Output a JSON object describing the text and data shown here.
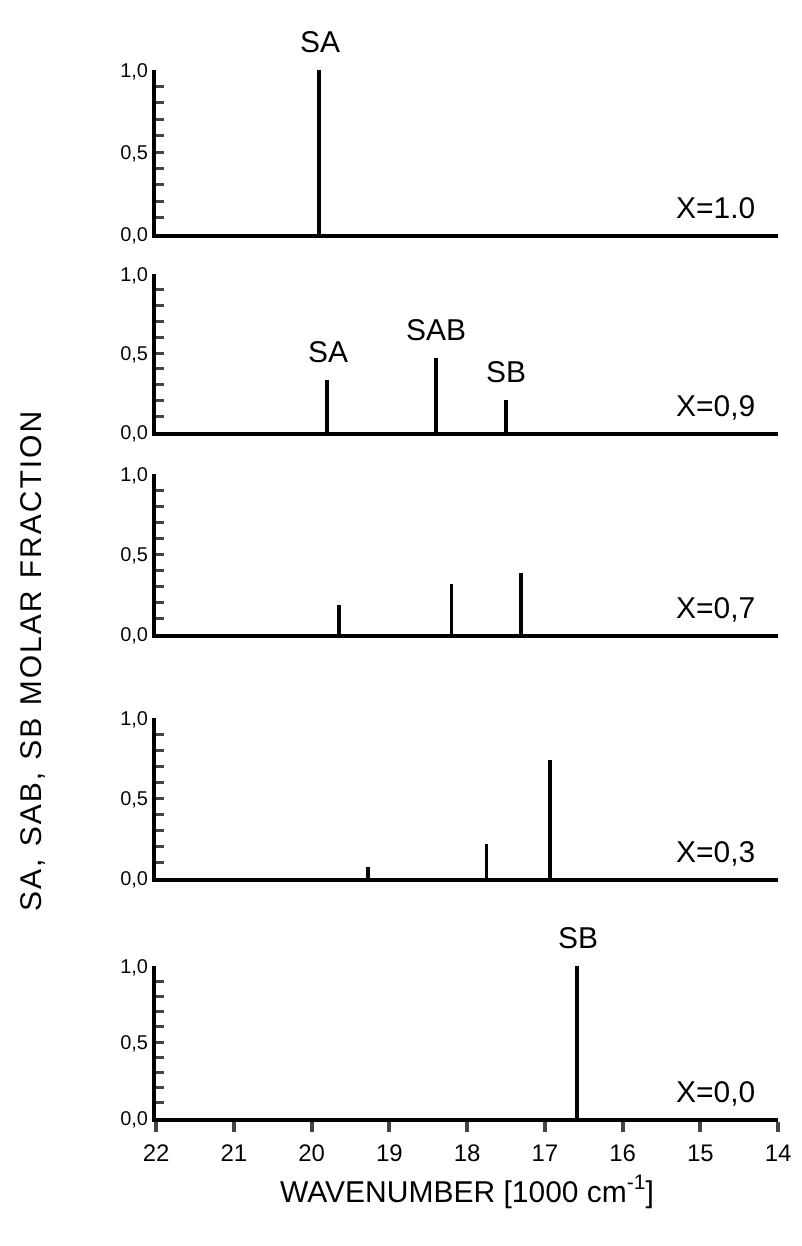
{
  "chart_data": [
    {
      "type": "bar",
      "x": [
        19.9
      ],
      "values": [
        1.0
      ],
      "color": "#000000",
      "xlim": [
        22,
        14
      ],
      "ylim": [
        0,
        1
      ],
      "tick_labels": "y",
      "yticks": [
        {
          "value": 0,
          "label": "0,0"
        },
        {
          "value": 0.1,
          "label": null
        },
        {
          "value": 0.2,
          "label": null
        },
        {
          "value": 0.3,
          "label": null
        },
        {
          "value": 0.4,
          "label": null
        },
        {
          "value": 0.5,
          "label": "0,5"
        },
        {
          "value": 0.6,
          "label": null
        },
        {
          "value": 0.7,
          "label": null
        },
        {
          "value": 0.8,
          "label": null
        },
        {
          "value": 0.9,
          "label": null
        },
        {
          "value": 1,
          "label": "1,0"
        }
      ],
      "annotations": [
        {
          "text": "SA",
          "x": 19.9,
          "y": 1.0
        },
        "X=1.0"
      ]
    },
    {
      "type": "bar",
      "x": [
        19.8,
        18.4,
        17.5
      ],
      "values": [
        0.33,
        0.47,
        0.2
      ],
      "color": "#000000",
      "xlim": [
        22,
        14
      ],
      "ylim": [
        0,
        1
      ],
      "tick_labels": "y",
      "yticks": [
        {
          "value": 0,
          "label": "0,0"
        },
        {
          "value": 0.1,
          "label": null
        },
        {
          "value": 0.2,
          "label": null
        },
        {
          "value": 0.3,
          "label": null
        },
        {
          "value": 0.4,
          "label": null
        },
        {
          "value": 0.5,
          "label": "0,5"
        },
        {
          "value": 0.6,
          "label": null
        },
        {
          "value": 0.7,
          "label": null
        },
        {
          "value": 0.8,
          "label": null
        },
        {
          "value": 0.9,
          "label": null
        },
        {
          "value": 1,
          "label": "1,0"
        }
      ],
      "annotations": [
        {
          "text": "SA",
          "x": 19.8,
          "y": 0.33
        },
        {
          "text": "SAB",
          "x": 18.4,
          "y": 0.47
        },
        {
          "text": "SB",
          "x": 17.5,
          "y": 0.2
        },
        "X=0,9"
      ]
    },
    {
      "type": "bar",
      "x": [
        19.65,
        18.2,
        17.3
      ],
      "values": [
        0.18,
        0.31,
        0.38
      ],
      "color": "#000000",
      "xlim": [
        22,
        14
      ],
      "ylim": [
        0,
        1
      ],
      "tick_labels": "y",
      "ylabel": "SA, SAB, SB  MOLAR  FRACTION",
      "yticks": [
        {
          "value": 0,
          "label": "0,0"
        },
        {
          "value": 0.1,
          "label": null
        },
        {
          "value": 0.2,
          "label": null
        },
        {
          "value": 0.3,
          "label": null
        },
        {
          "value": 0.4,
          "label": null
        },
        {
          "value": 0.5,
          "label": "0,5"
        },
        {
          "value": 0.6,
          "label": null
        },
        {
          "value": 0.7,
          "label": null
        },
        {
          "value": 0.8,
          "label": null
        },
        {
          "value": 0.9,
          "label": null
        },
        {
          "value": 1,
          "label": "1,0"
        }
      ],
      "annotations": [
        "X=0,7"
      ]
    },
    {
      "type": "bar",
      "x": [
        19.27,
        17.75,
        16.93
      ],
      "values": [
        0.07,
        0.21,
        0.74
      ],
      "color": "#000000",
      "xlim": [
        22,
        14
      ],
      "ylim": [
        0,
        1
      ],
      "tick_labels": "y",
      "yticks": [
        {
          "value": 0,
          "label": "0,0"
        },
        {
          "value": 0.1,
          "label": null
        },
        {
          "value": 0.2,
          "label": null
        },
        {
          "value": 0.3,
          "label": null
        },
        {
          "value": 0.4,
          "label": null
        },
        {
          "value": 0.5,
          "label": "0,5"
        },
        {
          "value": 0.6,
          "label": null
        },
        {
          "value": 0.7,
          "label": null
        },
        {
          "value": 0.8,
          "label": null
        },
        {
          "value": 0.9,
          "label": null
        },
        {
          "value": 1,
          "label": "1,0"
        }
      ],
      "annotations": [
        "X=0,3"
      ]
    },
    {
      "type": "bar",
      "x": [
        16.58
      ],
      "values": [
        1.0
      ],
      "color": "#000000",
      "xlim": [
        22,
        14
      ],
      "ylim": [
        0,
        1
      ],
      "xticks": [
        22,
        21,
        20,
        19,
        18,
        17,
        16,
        15,
        14
      ],
      "xlabel": "WAVENUMBER [1000 cm$^{-1}$]",
      "yticks": [
        {
          "value": 0,
          "label": "0,0"
        },
        {
          "value": 0.1,
          "label": null
        },
        {
          "value": 0.2,
          "label": null
        },
        {
          "value": 0.3,
          "label": null
        },
        {
          "value": 0.4,
          "label": null
        },
        {
          "value": 0.5,
          "label": "0,5"
        },
        {
          "value": 0.6,
          "label": null
        },
        {
          "value": 0.7,
          "label": null
        },
        {
          "value": 0.8,
          "label": null
        },
        {
          "value": 0.9,
          "label": null
        },
        {
          "value": 1,
          "label": "1,0"
        }
      ],
      "annotations": [
        {
          "text": "SB",
          "x": 16.58,
          "y": 1.0
        },
        "X=0,0"
      ]
    }
  ]
}
